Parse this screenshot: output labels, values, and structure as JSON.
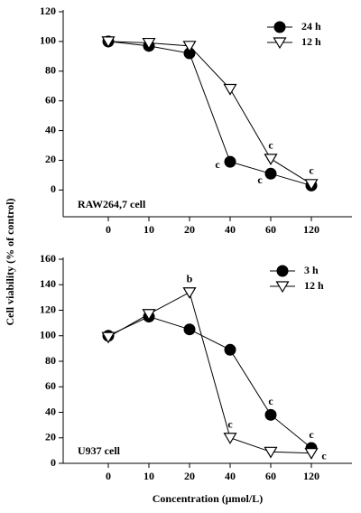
{
  "chart_data": [
    {
      "type": "line",
      "ylabel": "Cell viability (% of control)",
      "label": "RAW264,7 cell",
      "categories": [
        "0",
        "10",
        "20",
        "40",
        "60",
        "120"
      ],
      "series": [
        {
          "name": "24 h",
          "marker": "circle",
          "color": "#000000",
          "values": [
            100,
            97,
            92,
            19,
            11,
            3
          ]
        },
        {
          "name": "12 h",
          "marker": "triangle-down",
          "color": "#000000",
          "values": [
            100,
            99,
            97,
            68,
            21,
            4
          ]
        }
      ],
      "ylim": [
        -18,
        120
      ],
      "yticks": [
        0,
        20,
        40,
        60,
        80,
        100,
        120
      ],
      "annotations": [
        {
          "text": "c",
          "series": "24 h",
          "x": "40"
        },
        {
          "text": "c",
          "series": "24 h",
          "x": "60"
        },
        {
          "text": "c",
          "series": "12 h",
          "x": "60"
        },
        {
          "text": "c",
          "series": "12 h",
          "x": "120"
        }
      ]
    },
    {
      "type": "line",
      "xlabel": "Concentration (μmol/L)",
      "label": "U937 cell",
      "categories": [
        "0",
        "10",
        "20",
        "40",
        "60",
        "120"
      ],
      "series": [
        {
          "name": "3 h",
          "marker": "circle",
          "color": "#000000",
          "values": [
            100,
            115,
            105,
            89,
            38,
            12
          ]
        },
        {
          "name": "12 h",
          "marker": "triangle-down",
          "color": "#000000",
          "values": [
            99,
            117,
            134,
            20,
            9,
            8
          ]
        }
      ],
      "ylim": [
        0,
        160
      ],
      "yticks": [
        0,
        20,
        40,
        60,
        80,
        100,
        120,
        140,
        160
      ],
      "annotations": [
        {
          "text": "b",
          "series": "12 h",
          "x": "20"
        },
        {
          "text": "c",
          "series": "12 h",
          "x": "40"
        },
        {
          "text": "c",
          "series": "3 h",
          "x": "60"
        },
        {
          "text": "c",
          "series": "3 h",
          "x": "120"
        },
        {
          "text": "c",
          "series": "12 h",
          "x": "120"
        }
      ]
    }
  ]
}
